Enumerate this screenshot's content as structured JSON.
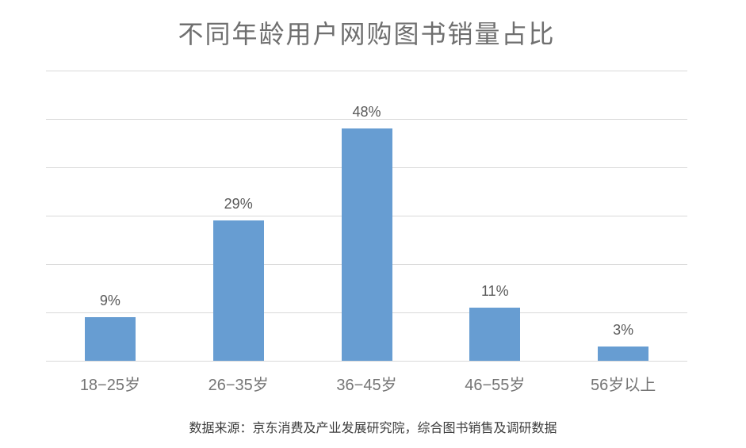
{
  "chart_data": {
    "type": "bar",
    "title": "不同年龄用户网购图书销量占比",
    "categories": [
      "18−25岁",
      "26−35岁",
      "36−45岁",
      "46−55岁",
      "56岁以上"
    ],
    "values": [
      9,
      29,
      48,
      11,
      3
    ],
    "value_labels": [
      "9%",
      "29%",
      "48%",
      "11%",
      "3%"
    ],
    "unit": "%",
    "xlabel": "",
    "ylabel": "",
    "ylim": [
      0,
      60
    ],
    "grid_step": 10,
    "grid": true,
    "legend": false,
    "y_tick_labels_visible": false,
    "bar_color": "#679dd2",
    "gridline_color": "#d9d9d9",
    "title_color": "#6f6f6f",
    "label_color": "#595959",
    "axis_label_color": "#757575",
    "source_color": "#3d3d3d",
    "source_note": "数据来源：京东消费及产业发展研究院，综合图书销售及调研数据"
  }
}
